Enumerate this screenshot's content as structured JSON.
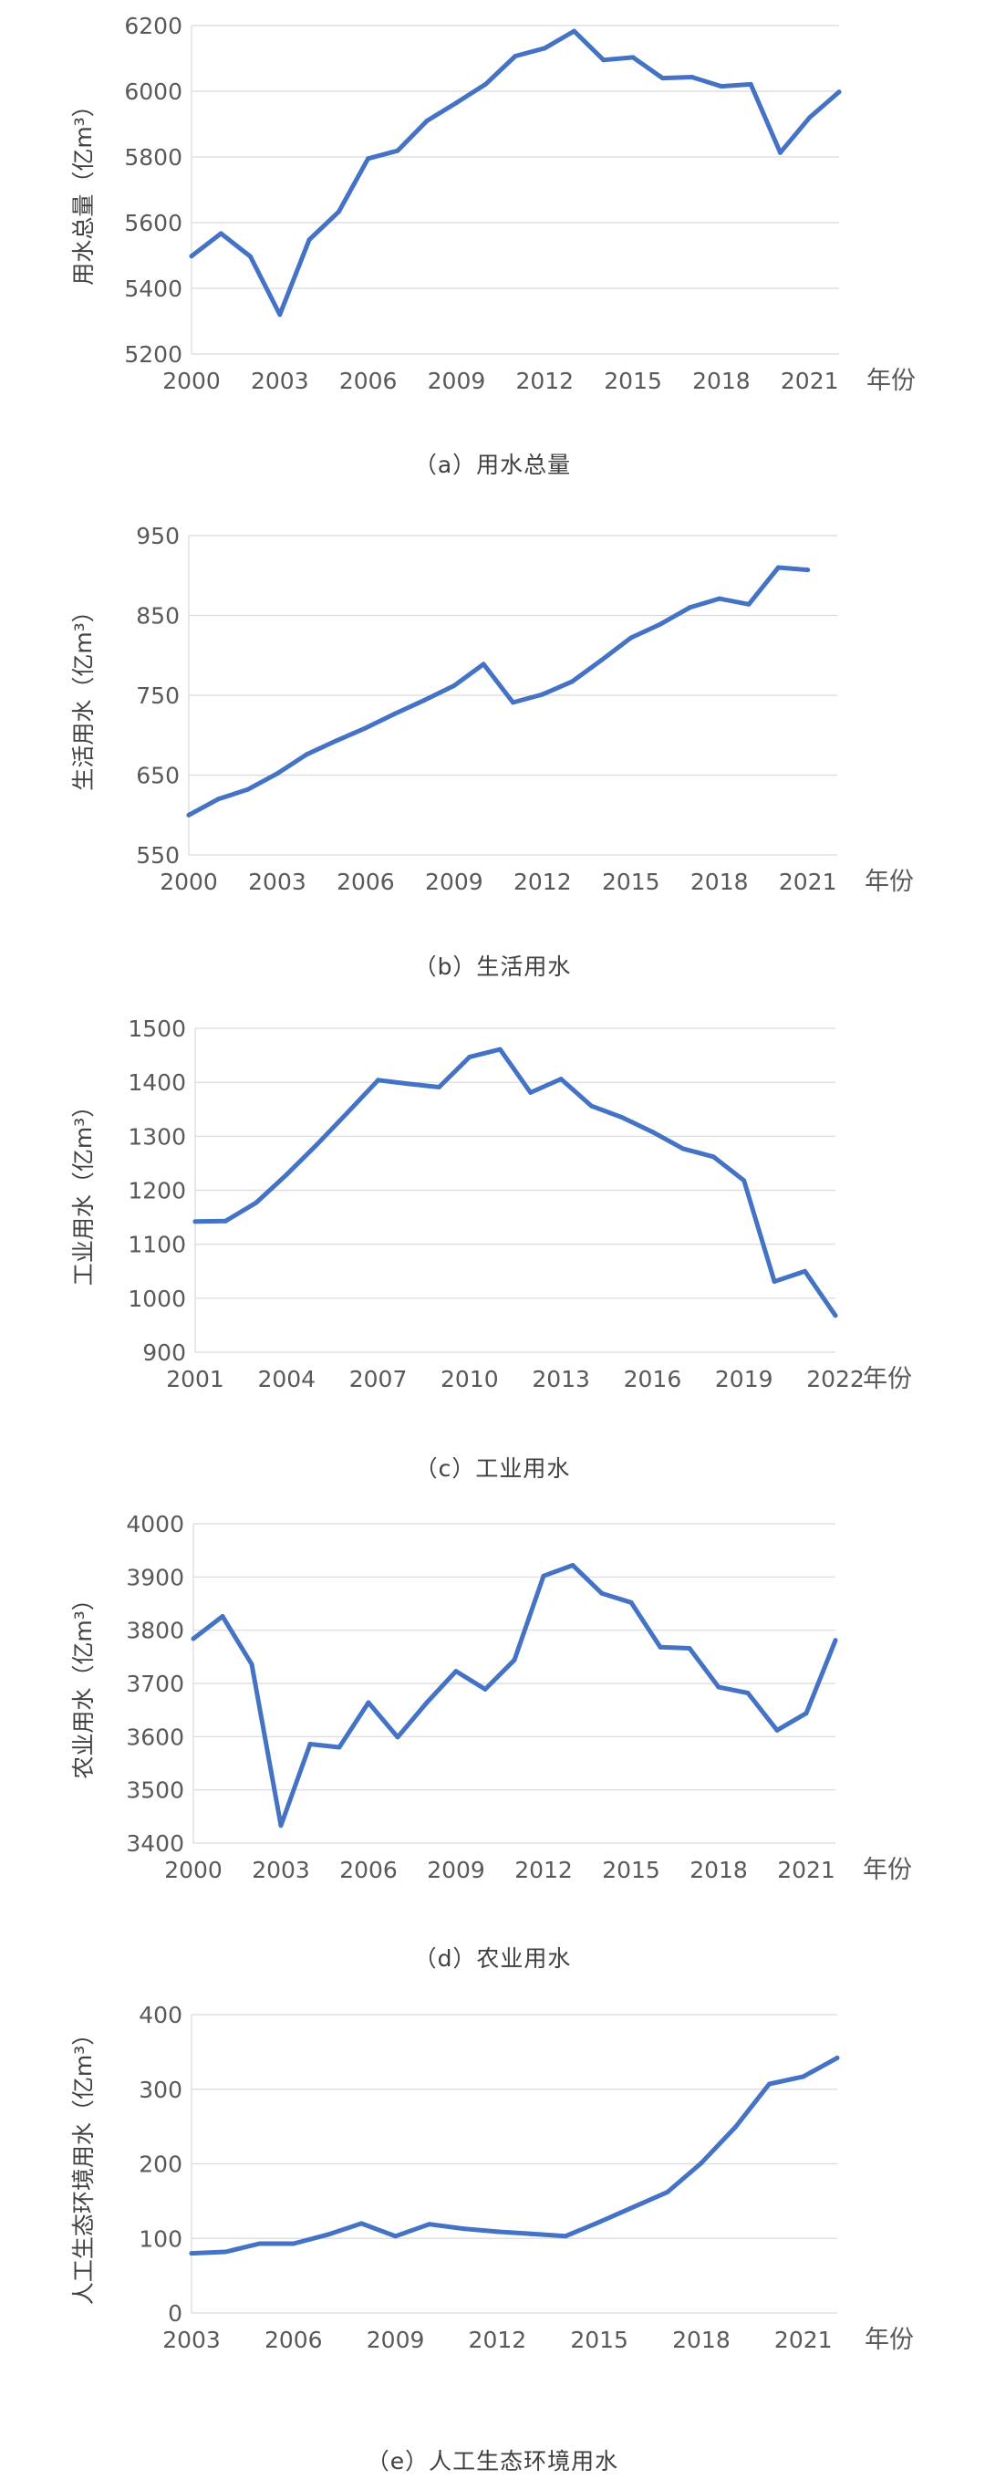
{
  "chart_data": [
    {
      "type": "line",
      "caption": "（a）用水总量",
      "ylabel": "用水总量（亿m³）",
      "xlabel": "年份",
      "ylim": [
        5200,
        6200
      ],
      "yticks": [
        5200,
        5400,
        5600,
        5800,
        6000,
        6200
      ],
      "xlim": [
        2000,
        2022
      ],
      "xticks": [
        2000,
        2003,
        2006,
        2009,
        2012,
        2015,
        2018,
        2021
      ],
      "grid": true,
      "series": [
        {
          "x": [
            2000,
            2001,
            2002,
            2003,
            2004,
            2005,
            2006,
            2007,
            2008,
            2009,
            2010,
            2011,
            2012,
            2013,
            2014,
            2015,
            2016,
            2017,
            2018,
            2019,
            2020,
            2021,
            2022
          ],
          "values": [
            5498,
            5567,
            5497,
            5320,
            5548,
            5633,
            5795,
            5819,
            5910,
            5965,
            6022,
            6107,
            6131,
            6183,
            6095,
            6103,
            6040,
            6043,
            6015,
            6021,
            5813,
            5920,
            5998
          ]
        }
      ]
    },
    {
      "type": "line",
      "caption": "（b）生活用水",
      "ylabel": "生活用水（亿m³）",
      "xlabel": "年份",
      "ylim": [
        550,
        950
      ],
      "yticks": [
        550,
        650,
        750,
        850,
        950
      ],
      "xlim": [
        2000,
        2022
      ],
      "xticks": [
        2000,
        2003,
        2006,
        2009,
        2012,
        2015,
        2018,
        2021
      ],
      "grid": true,
      "series": [
        {
          "x": [
            2000,
            2001,
            2002,
            2003,
            2004,
            2005,
            2006,
            2007,
            2008,
            2009,
            2010,
            2011,
            2012,
            2013,
            2014,
            2015,
            2016,
            2017,
            2018,
            2019,
            2020,
            2021
          ],
          "values": [
            600,
            620,
            632,
            652,
            676,
            693,
            709,
            727,
            744,
            762,
            789,
            741,
            751,
            767,
            794,
            822,
            839,
            860,
            871,
            864,
            910,
            907
          ]
        }
      ]
    },
    {
      "type": "line",
      "caption": "（c）工业用水",
      "ylabel": "工业用水（亿m³）",
      "xlabel": "年份",
      "ylim": [
        900,
        1500
      ],
      "yticks": [
        900,
        1000,
        1100,
        1200,
        1300,
        1400,
        1500
      ],
      "xlim": [
        2001,
        2022
      ],
      "xticks": [
        2001,
        2004,
        2007,
        2010,
        2013,
        2016,
        2019,
        2022
      ],
      "grid": true,
      "series": [
        {
          "x": [
            2001,
            2002,
            2003,
            2004,
            2005,
            2006,
            2007,
            2008,
            2009,
            2010,
            2011,
            2012,
            2013,
            2014,
            2015,
            2016,
            2017,
            2018,
            2019,
            2020,
            2021,
            2022
          ],
          "values": [
            1142,
            1143,
            1177,
            1229,
            1285,
            1344,
            1404,
            1397,
            1391,
            1447,
            1461,
            1381,
            1406,
            1356,
            1335,
            1308,
            1277,
            1262,
            1218,
            1031,
            1050,
            968
          ]
        }
      ]
    },
    {
      "type": "line",
      "caption": "（d）农业用水",
      "ylabel": "农业用水（亿m³）",
      "xlabel": "年份",
      "ylim": [
        3400,
        4000
      ],
      "yticks": [
        3400,
        3500,
        3600,
        3700,
        3800,
        3900,
        4000
      ],
      "xlim": [
        2000,
        2022
      ],
      "xticks": [
        2000,
        2003,
        2006,
        2009,
        2012,
        2015,
        2018,
        2021
      ],
      "grid": true,
      "series": [
        {
          "x": [
            2000,
            2001,
            2002,
            2003,
            2004,
            2005,
            2006,
            2007,
            2008,
            2009,
            2010,
            2011,
            2012,
            2013,
            2014,
            2015,
            2016,
            2017,
            2018,
            2019,
            2020,
            2021,
            2022
          ],
          "values": [
            3784,
            3826,
            3736,
            3433,
            3586,
            3580,
            3664,
            3599,
            3664,
            3723,
            3689,
            3744,
            3902,
            3922,
            3869,
            3852,
            3768,
            3766,
            3693,
            3682,
            3612,
            3644,
            3781
          ]
        }
      ]
    },
    {
      "type": "line",
      "caption": "（e）人工生态环境用水",
      "ylabel": "人工生态环境用水（亿m³）",
      "xlabel": "年份",
      "ylim": [
        0,
        400
      ],
      "yticks": [
        0,
        100,
        200,
        300,
        400
      ],
      "xlim": [
        2003,
        2022
      ],
      "xticks": [
        2003,
        2006,
        2009,
        2012,
        2015,
        2018,
        2021
      ],
      "grid": true,
      "series": [
        {
          "x": [
            2003,
            2004,
            2005,
            2006,
            2007,
            2008,
            2009,
            2010,
            2011,
            2012,
            2013,
            2014,
            2015,
            2016,
            2017,
            2018,
            2019,
            2020,
            2021,
            2022
          ],
          "values": [
            80,
            82,
            93,
            93,
            105,
            120,
            103,
            119,
            113,
            109,
            106,
            103,
            122,
            142,
            162,
            201,
            249,
            307,
            317,
            342
          ]
        }
      ]
    }
  ],
  "style": {
    "line_color": "#4472C4",
    "grid_color": "#D9D9D9",
    "text_color": "#595959"
  }
}
